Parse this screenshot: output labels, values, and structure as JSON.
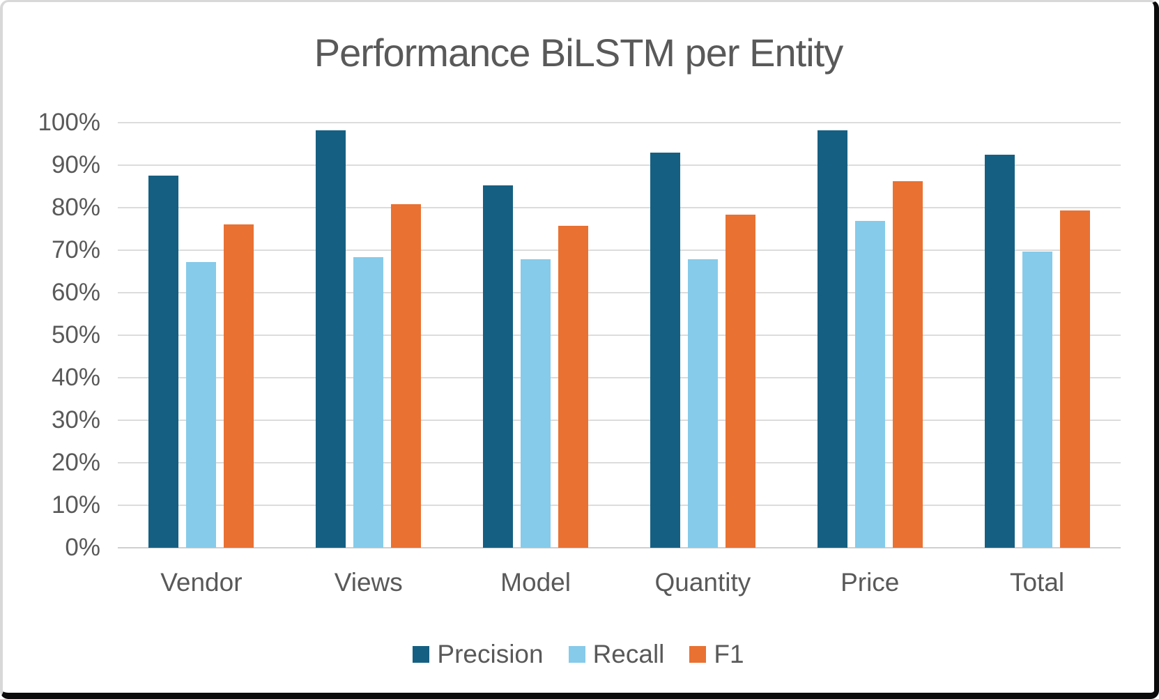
{
  "chart_data": {
    "type": "bar",
    "title": "Performance BiLSTM per Entity",
    "categories": [
      "Vendor",
      "Views",
      "Model",
      "Quantity",
      "Price",
      "Total"
    ],
    "series": [
      {
        "name": "Precision",
        "color": "#156082",
        "values": [
          87.5,
          98.2,
          85.3,
          92.9,
          98.2,
          92.4
        ]
      },
      {
        "name": "Recall",
        "color": "#86CBEA",
        "values": [
          67.2,
          68.3,
          67.8,
          67.8,
          76.9,
          69.6
        ]
      },
      {
        "name": "F1",
        "color": "#E97132",
        "values": [
          76.0,
          80.8,
          75.7,
          78.3,
          86.2,
          79.4
        ]
      }
    ],
    "ylim": [
      0,
      100
    ],
    "y_tick_step": 10,
    "y_tick_labels": [
      "100%",
      "90%",
      "80%",
      "70%",
      "60%",
      "50%",
      "40%",
      "30%",
      "20%",
      "10%",
      "0%"
    ],
    "grid": true,
    "legend_position": "bottom",
    "colors": {
      "text": "#595959",
      "gridline": "#DCDCDC",
      "axis_line": "#CFCFCF",
      "frame_dark": "#0B0B0B",
      "frame_light": "#D8D8D8",
      "background": "#FFFFFF"
    }
  }
}
